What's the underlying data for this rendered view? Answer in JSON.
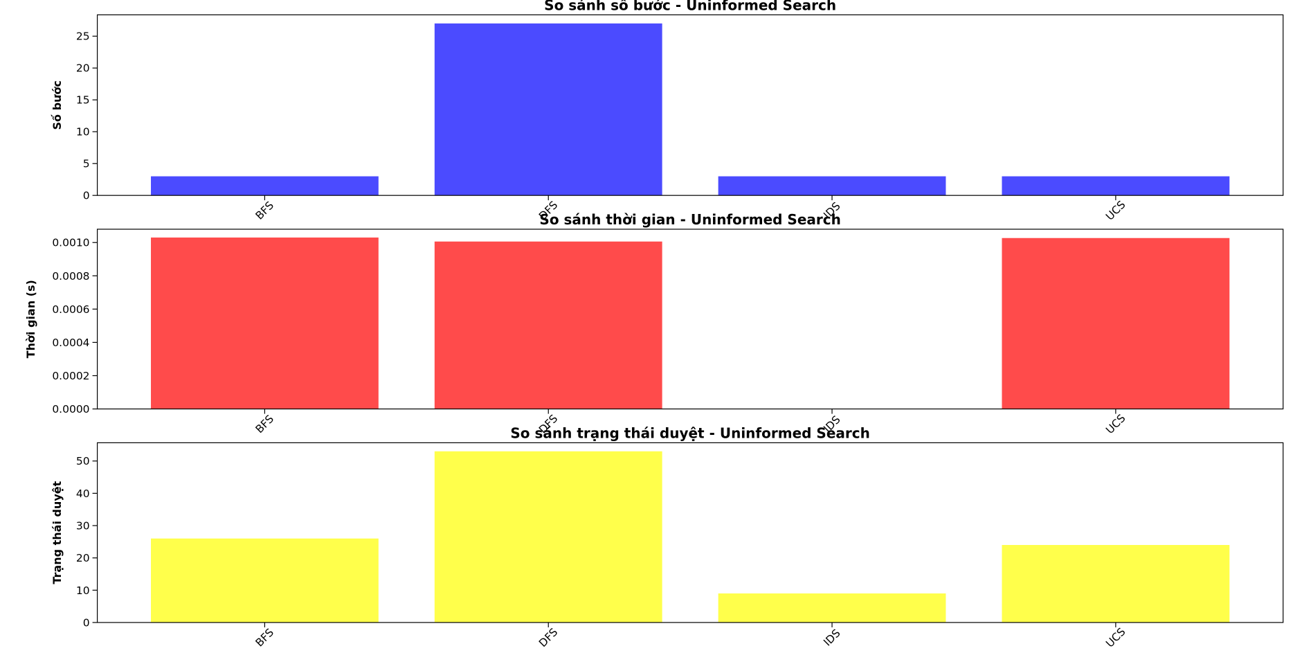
{
  "chart_data": [
    {
      "type": "bar",
      "title": "So sánh số bước - Uninformed Search",
      "xlabel": "",
      "ylabel": "Số bước",
      "categories": [
        "BFS",
        "DFS",
        "IDS",
        "UCS"
      ],
      "values": [
        3,
        27,
        3,
        3
      ],
      "ylim": [
        0,
        28.35
      ],
      "yticks": [
        0,
        5,
        10,
        15,
        20,
        25
      ],
      "ytick_labels": [
        "0",
        "5",
        "10",
        "15",
        "20",
        "25"
      ],
      "color": "#4b4bff",
      "grid": false,
      "legend": "none"
    },
    {
      "type": "bar",
      "title": "So sánh thời gian - Uninformed Search",
      "xlabel": "",
      "ylabel": "Thời gian (s)",
      "categories": [
        "BFS",
        "DFS",
        "IDS",
        "UCS"
      ],
      "values": [
        0.00103,
        0.001006,
        0,
        0.001027
      ],
      "ylim": [
        0,
        0.00108
      ],
      "yticks": [
        0,
        0.0002,
        0.0004,
        0.0006,
        0.0008,
        0.001
      ],
      "ytick_labels": [
        "0.0000",
        "0.0002",
        "0.0004",
        "0.0006",
        "0.0008",
        "0.0010"
      ],
      "color": "#ff4b4b",
      "grid": false,
      "legend": "none"
    },
    {
      "type": "bar",
      "title": "So sánh trạng thái duyệt - Uninformed Search",
      "xlabel": "",
      "ylabel": "Trạng thái duyệt",
      "categories": [
        "BFS",
        "DFS",
        "IDS",
        "UCS"
      ],
      "values": [
        26,
        53,
        9,
        24
      ],
      "ylim": [
        0,
        55.65
      ],
      "yticks": [
        0,
        10,
        20,
        30,
        40,
        50
      ],
      "ytick_labels": [
        "0",
        "10",
        "20",
        "30",
        "40",
        "50"
      ],
      "color": "#ffff4b",
      "grid": false,
      "legend": "none"
    }
  ]
}
